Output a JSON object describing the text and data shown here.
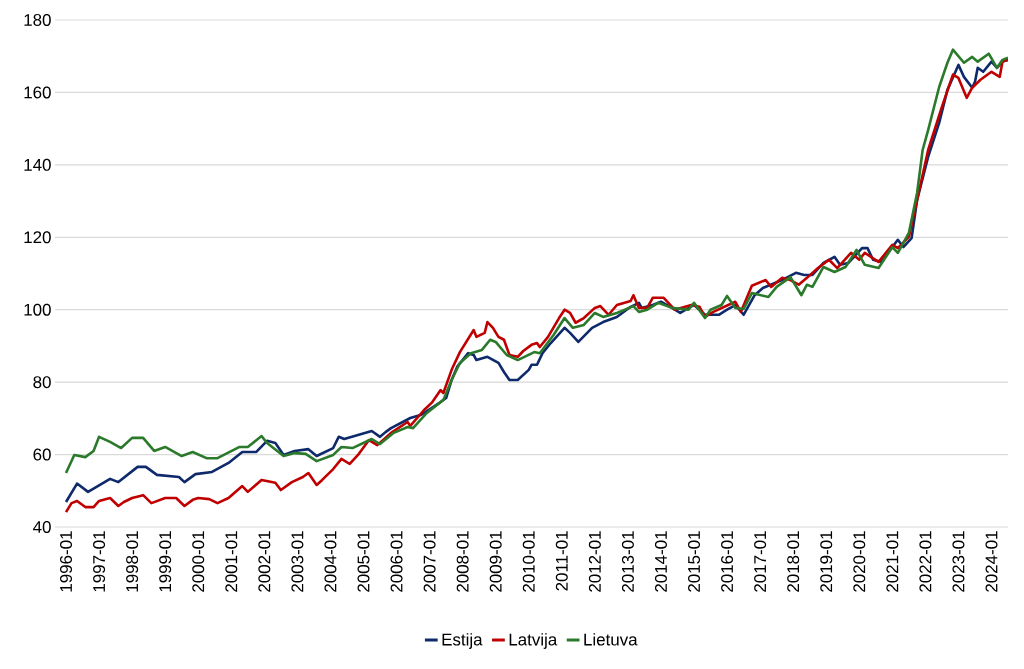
{
  "chart_data": {
    "type": "line",
    "xlim": [
      "1995-09",
      "2024-07"
    ],
    "ylim": [
      40,
      180
    ],
    "yticks": [
      40,
      60,
      80,
      100,
      120,
      140,
      160,
      180
    ],
    "xticks": [
      "1996-01",
      "1997-01",
      "1998-01",
      "1999-01",
      "2000-01",
      "2001-01",
      "2002-01",
      "2003-01",
      "2004-01",
      "2005-01",
      "2006-01",
      "2007-01",
      "2008-01",
      "2009-01",
      "2010-01",
      "2011-01",
      "2012-01",
      "2013-01",
      "2014-01",
      "2015-01",
      "2016-01",
      "2017-01",
      "2018-01",
      "2019-01",
      "2020-01",
      "2021-01",
      "2022-01",
      "2023-01",
      "2024-01"
    ],
    "grid": "y",
    "legend": "bottom",
    "series": [
      {
        "name": "Estija",
        "color": "#0e2a6b",
        "x": [
          "1996-01",
          "1996-05",
          "1996-09",
          "1997-05",
          "1997-08",
          "1998-03",
          "1998-06",
          "1998-10",
          "1999-06",
          "1999-08",
          "1999-12",
          "2000-06",
          "2000-12",
          "2001-05",
          "2001-10",
          "2002-02",
          "2002-05",
          "2002-08",
          "2002-12",
          "2003-05",
          "2003-08",
          "2004-02",
          "2004-04",
          "2004-06",
          "2004-11",
          "2005-04",
          "2005-07",
          "2005-09",
          "2005-11",
          "2006-06",
          "2006-10",
          "2007-05",
          "2007-07",
          "2007-09",
          "2007-11",
          "2008-03",
          "2008-05",
          "2008-06",
          "2008-10",
          "2009-02",
          "2009-04",
          "2009-06",
          "2009-09",
          "2010-01",
          "2010-02",
          "2010-04",
          "2010-06",
          "2010-09",
          "2011-02",
          "2011-04",
          "2011-07",
          "2011-12",
          "2012-04",
          "2012-09",
          "2013-02",
          "2013-05",
          "2013-06",
          "2013-10",
          "2014-01",
          "2014-05",
          "2014-08",
          "2015-01",
          "2015-05",
          "2015-10",
          "2016-01",
          "2016-04",
          "2016-07",
          "2016-11",
          "2017-02",
          "2017-09",
          "2017-11",
          "2018-02",
          "2018-05",
          "2018-08",
          "2018-12",
          "2019-04",
          "2019-06",
          "2019-09",
          "2020-02",
          "2020-04",
          "2020-06",
          "2020-09",
          "2021-01",
          "2021-03",
          "2021-05",
          "2021-08",
          "2021-10",
          "2022-02",
          "2022-06",
          "2022-09",
          "2023-01",
          "2023-03",
          "2023-06",
          "2023-07",
          "2023-08",
          "2023-10",
          "2024-01",
          "2024-03",
          "2024-05",
          "2024-07"
        ],
        "values": [
          46.9,
          52,
          49.7,
          53.3,
          52.4,
          56.6,
          56.6,
          54.4,
          53.8,
          52.4,
          54.6,
          55.2,
          57.7,
          60.7,
          60.7,
          63.8,
          63.2,
          59.9,
          61,
          61.5,
          59.6,
          61.8,
          64.9,
          64.3,
          65.4,
          66.5,
          64.9,
          66.2,
          67.3,
          70.1,
          71,
          74.5,
          75.6,
          80.6,
          84.2,
          88,
          87.5,
          86.1,
          87,
          85.3,
          82.8,
          80.6,
          80.6,
          83.4,
          84.8,
          84.8,
          88,
          90.8,
          95,
          93.6,
          91.1,
          95,
          96.6,
          98,
          100.8,
          101.9,
          100.5,
          101.3,
          102.2,
          100.5,
          99.1,
          101.3,
          98.6,
          98.6,
          100,
          101.3,
          98.6,
          104,
          106,
          108.2,
          109,
          110.2,
          109.6,
          109.6,
          112.9,
          114.6,
          112.4,
          112.9,
          117,
          117,
          113.8,
          113.2,
          117.3,
          119.3,
          117.3,
          119.8,
          130.3,
          142.2,
          151.6,
          160.7,
          167.6,
          164.3,
          161.3,
          162.9,
          166.8,
          165.7,
          168.5,
          166.8,
          168.5,
          169
        ]
      },
      {
        "name": "Latvija",
        "color": "#c00000",
        "x": [
          "1996-01",
          "1996-03",
          "1996-05",
          "1996-08",
          "1996-11",
          "1997-01",
          "1997-05",
          "1997-08",
          "1997-10",
          "1998-01",
          "1998-05",
          "1998-08",
          "1999-01",
          "1999-05",
          "1999-08",
          "1999-11",
          "2000-01",
          "2000-05",
          "2000-08",
          "2000-12",
          "2001-05",
          "2001-07",
          "2001-12",
          "2002-05",
          "2002-07",
          "2002-11",
          "2003-03",
          "2003-05",
          "2003-08",
          "2003-10",
          "2004-02",
          "2004-05",
          "2004-08",
          "2004-11",
          "2005-03",
          "2005-06",
          "2005-11",
          "2006-05",
          "2006-06",
          "2006-11",
          "2007-02",
          "2007-05",
          "2007-06",
          "2007-09",
          "2007-12",
          "2008-05",
          "2008-06",
          "2008-09",
          "2008-10",
          "2008-12",
          "2009-02",
          "2009-04",
          "2009-06",
          "2009-09",
          "2009-11",
          "2010-02",
          "2010-04",
          "2010-05",
          "2010-08",
          "2010-12",
          "2011-02",
          "2011-04",
          "2011-06",
          "2011-09",
          "2012-01",
          "2012-03",
          "2012-06",
          "2012-09",
          "2013-02",
          "2013-03",
          "2013-05",
          "2013-08",
          "2013-10",
          "2014-02",
          "2014-06",
          "2014-12",
          "2015-03",
          "2015-05",
          "2015-08",
          "2016-04",
          "2016-06",
          "2016-10",
          "2017-03",
          "2017-05",
          "2017-09",
          "2017-12",
          "2018-03",
          "2018-06",
          "2018-10",
          "2019-02",
          "2019-05",
          "2019-10",
          "2020-01",
          "2020-03",
          "2020-08",
          "2021-01",
          "2021-03",
          "2021-07",
          "2021-10",
          "2022-02",
          "2022-07",
          "2022-11",
          "2023-01",
          "2023-04",
          "2023-06",
          "2023-09",
          "2024-01",
          "2024-04",
          "2024-05",
          "2024-07"
        ],
        "values": [
          44.1,
          46.6,
          47.2,
          45.5,
          45.5,
          47.2,
          48,
          45.8,
          46.9,
          48,
          48.8,
          46.6,
          48,
          48,
          45.8,
          47.5,
          48,
          47.7,
          46.6,
          48,
          51.3,
          49.7,
          53,
          52.2,
          50.2,
          52.4,
          53.8,
          54.9,
          51.6,
          53,
          56,
          58.8,
          57.4,
          59.9,
          64,
          62.6,
          66,
          69,
          67.9,
          72.3,
          74.5,
          77.8,
          77,
          83.4,
          88.3,
          94.4,
          92.5,
          93.6,
          96.6,
          95,
          92.5,
          91.7,
          87.5,
          87,
          88.6,
          90.3,
          90.8,
          89.7,
          92.5,
          97.7,
          100,
          99.1,
          96.4,
          97.7,
          100.5,
          101,
          98.6,
          101.3,
          102.4,
          104,
          100.5,
          100.5,
          103.3,
          103.3,
          100,
          101.3,
          100.8,
          98,
          99.4,
          102.2,
          99.4,
          106.6,
          108.2,
          106.3,
          108.8,
          108.2,
          106.9,
          108.8,
          111.5,
          113.8,
          111.5,
          115.7,
          113.8,
          115.7,
          113.2,
          117.9,
          117,
          120.1,
          130.3,
          144.1,
          156,
          164.9,
          164,
          158.5,
          161.3,
          163.5,
          165.7,
          164.3,
          168.5,
          169
        ]
      },
      {
        "name": "Lietuva",
        "color": "#2b7a2b",
        "x": [
          "1996-01",
          "1996-04",
          "1996-08",
          "1996-11",
          "1997-01",
          "1997-05",
          "1997-09",
          "1998-01",
          "1998-05",
          "1998-09",
          "1999-01",
          "1999-07",
          "1999-11",
          "2000-04",
          "2000-08",
          "2001-04",
          "2001-07",
          "2001-12",
          "2002-02",
          "2002-08",
          "2002-12",
          "2003-04",
          "2003-08",
          "2004-02",
          "2004-05",
          "2004-09",
          "2005-04",
          "2005-07",
          "2005-12",
          "2006-05",
          "2006-07",
          "2006-12",
          "2007-06",
          "2007-09",
          "2007-12",
          "2008-04",
          "2008-08",
          "2008-11",
          "2009-01",
          "2009-05",
          "2009-09",
          "2010-03",
          "2010-05",
          "2010-10",
          "2011-02",
          "2011-05",
          "2011-09",
          "2012-01",
          "2012-04",
          "2012-09",
          "2013-03",
          "2013-05",
          "2013-08",
          "2013-12",
          "2014-05",
          "2014-11",
          "2015-01",
          "2015-05",
          "2015-07",
          "2015-11",
          "2016-01",
          "2016-04",
          "2016-07",
          "2016-10",
          "2017-04",
          "2017-07",
          "2017-12",
          "2018-04",
          "2018-06",
          "2018-08",
          "2018-12",
          "2019-04",
          "2019-08",
          "2019-12",
          "2020-03",
          "2020-08",
          "2021-01",
          "2021-03",
          "2021-07",
          "2021-10",
          "2021-12",
          "2022-02",
          "2022-06",
          "2022-09",
          "2022-11",
          "2023-03",
          "2023-06",
          "2023-08",
          "2023-12",
          "2024-03",
          "2024-05",
          "2024-07"
        ],
        "values": [
          54.9,
          59.9,
          59.3,
          61,
          64.9,
          63.5,
          61.8,
          64.6,
          64.6,
          61,
          62.1,
          59.6,
          60.7,
          59,
          59,
          62.1,
          62.1,
          65.1,
          63.2,
          59.6,
          60.4,
          60.2,
          58.2,
          59.9,
          62.1,
          61.8,
          64.3,
          62.9,
          66,
          67.6,
          67.3,
          71.5,
          75.1,
          80.6,
          85.3,
          88,
          88.9,
          91.7,
          91.1,
          87.5,
          86.1,
          88.3,
          88,
          93,
          97.7,
          95,
          95.8,
          99.1,
          98,
          99.1,
          101,
          99.4,
          100,
          101.9,
          100.5,
          100,
          101.9,
          97.7,
          100,
          101.3,
          103.8,
          100.5,
          100.2,
          104.6,
          103.5,
          106.3,
          109,
          104,
          106.9,
          106.3,
          111.8,
          110.4,
          111.8,
          116.5,
          112.4,
          111.5,
          117.3,
          115.7,
          121.2,
          132.3,
          144.1,
          149.6,
          161.5,
          168.2,
          171.8,
          168.2,
          169.8,
          168.5,
          170.7,
          166.8,
          169,
          169.6
        ]
      }
    ]
  }
}
